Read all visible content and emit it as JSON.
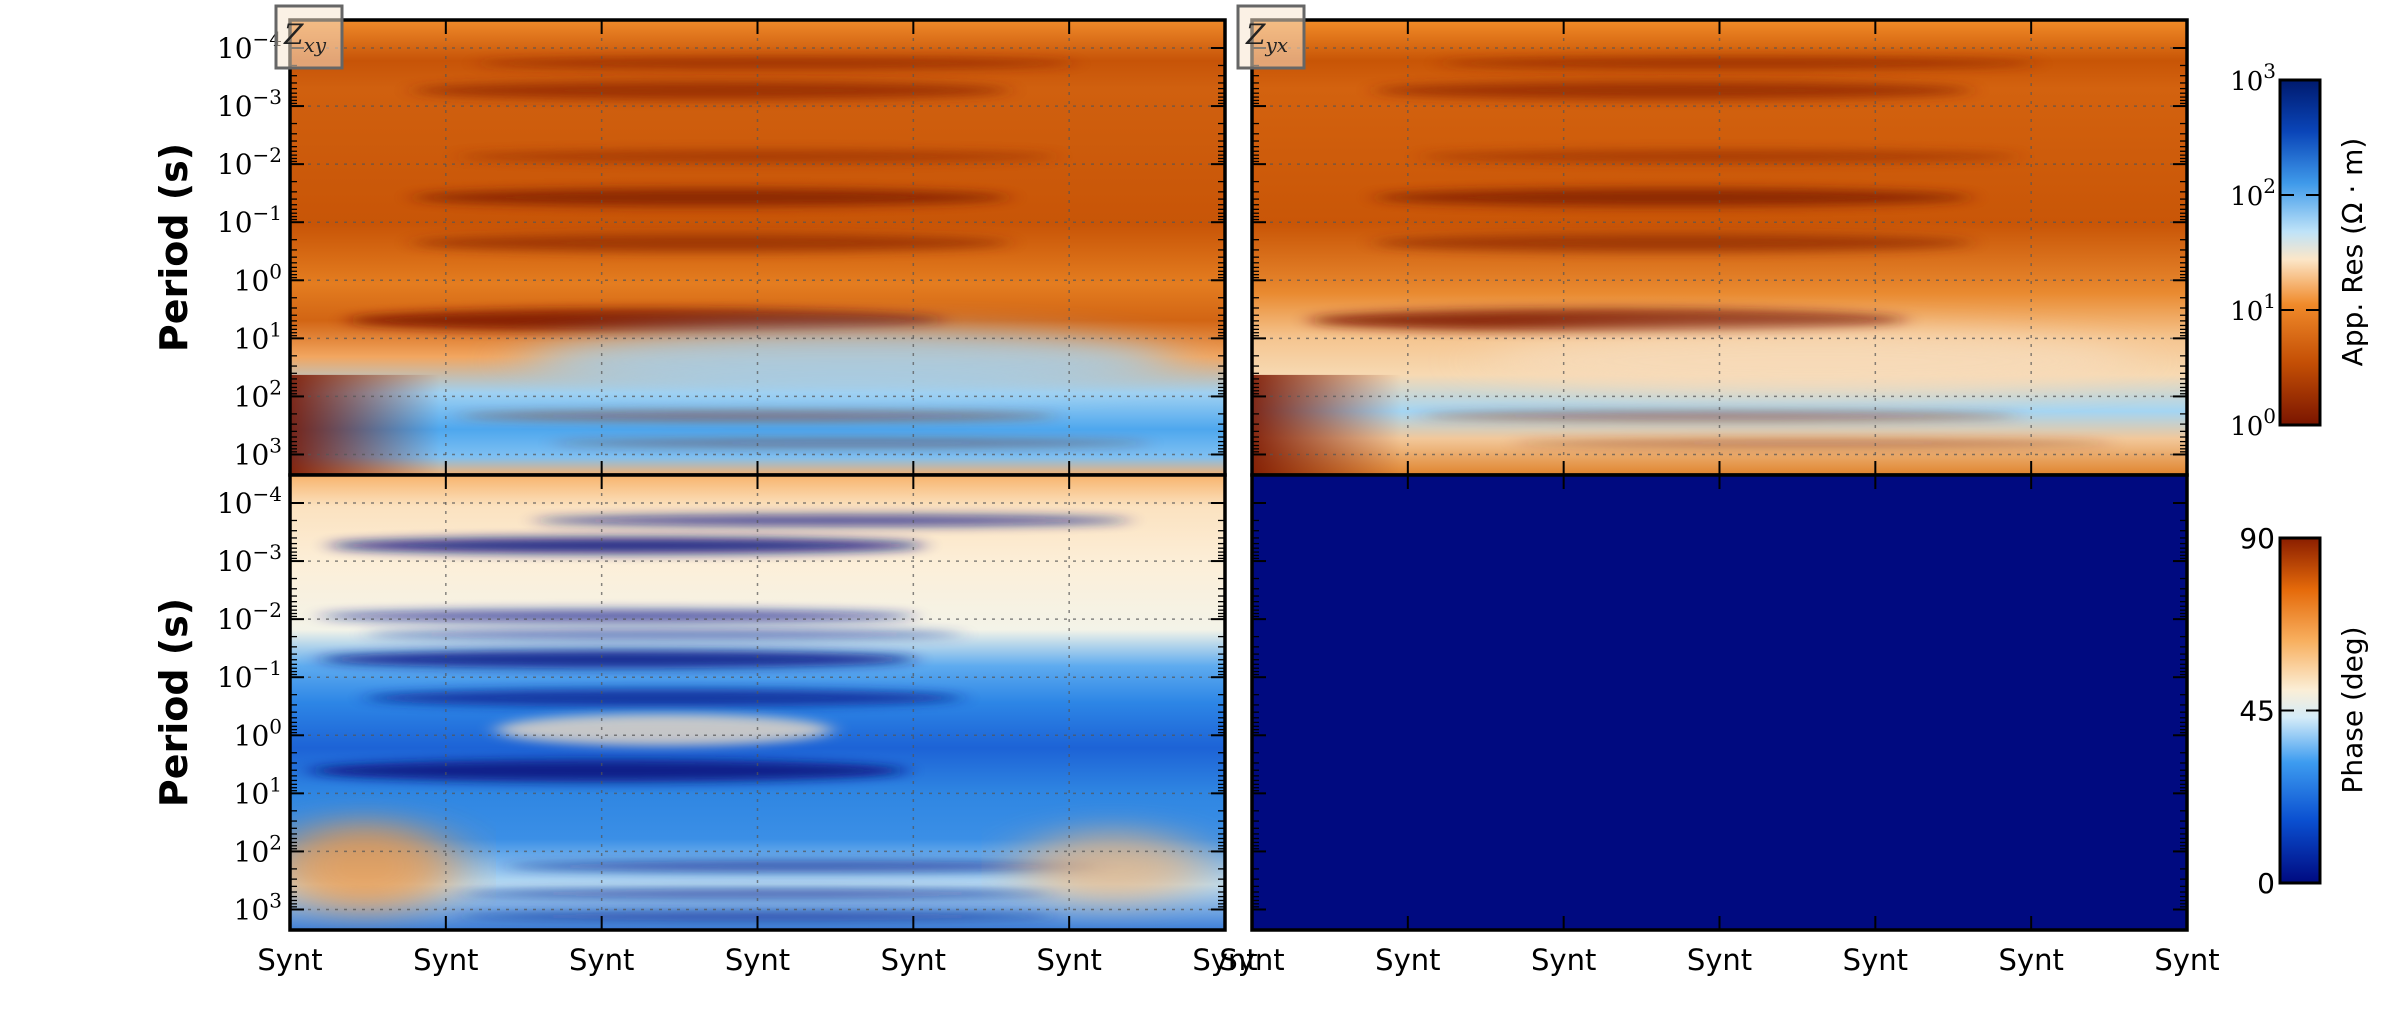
{
  "chart_data": [
    {
      "type": "heatmap",
      "panel": "apparent-resistivity-zxy",
      "component_label": "Zxy",
      "ylabel": "Period (s)",
      "y_scale": "log",
      "y_tick_labels": [
        "10^-4",
        "10^-3",
        "10^-2",
        "10^-1",
        "10^0",
        "10^1",
        "10^2",
        "10^3"
      ],
      "x_tick_labels": [
        "Synt",
        "Synt",
        "Synt",
        "Synt",
        "Synt",
        "Synt",
        "Synt"
      ],
      "grid": true
    },
    {
      "type": "heatmap",
      "panel": "apparent-resistivity-zyx",
      "component_label": "Zyx",
      "y_scale": "log",
      "x_tick_labels": [
        "Synt",
        "Synt",
        "Synt",
        "Synt",
        "Synt",
        "Synt",
        "Synt"
      ],
      "grid": true
    },
    {
      "type": "heatmap",
      "panel": "phase-zxy",
      "ylabel": "Period (s)",
      "y_scale": "log",
      "y_tick_labels": [
        "10^-4",
        "10^-3",
        "10^-2",
        "10^-1",
        "10^0",
        "10^1",
        "10^2",
        "10^3"
      ],
      "x_tick_labels": [
        "Synt",
        "Synt",
        "Synt",
        "Synt",
        "Synt",
        "Synt",
        "Synt"
      ],
      "grid": true
    },
    {
      "type": "heatmap",
      "panel": "phase-zyx",
      "fill": "uniform",
      "fill_color": "#000a80",
      "x_tick_labels": [
        "Synt",
        "Synt",
        "Synt",
        "Synt",
        "Synt",
        "Synt",
        "Synt"
      ],
      "grid": false
    }
  ],
  "colorbars": [
    {
      "label": "App. Res (Ω · m)",
      "scale": "log",
      "tick_labels": [
        "10^0",
        "10^1",
        "10^2",
        "10^3"
      ],
      "range": [
        1,
        1000
      ],
      "colors": [
        "#7a1500",
        "#d65a00",
        "#f5a050",
        "#fbe6c8",
        "#bfe3f8",
        "#3f9aea",
        "#0a45b8",
        "#001a6e"
      ]
    },
    {
      "label": "Phase (deg)",
      "scale": "linear",
      "tick_labels": [
        "0",
        "45",
        "90"
      ],
      "range": [
        0,
        90
      ],
      "colors": [
        "#000a80",
        "#0a4fd0",
        "#3d9cf0",
        "#bfe3f8",
        "#fbeed6",
        "#f8b060",
        "#e56a0a",
        "#8a1e00"
      ]
    }
  ]
}
